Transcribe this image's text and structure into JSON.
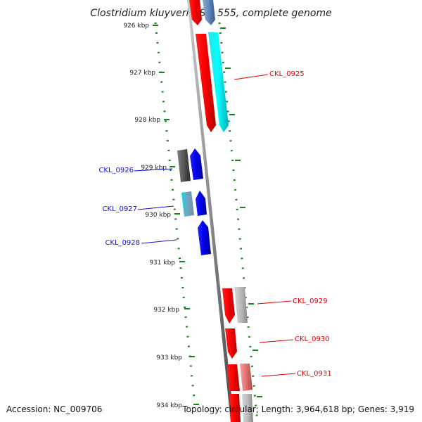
{
  "title": "Clostridium kluyveri DSM 555, complete genome",
  "ruler": [
    "926 kbp",
    "927 kbp",
    "928 kbp",
    "929 kbp",
    "930 kbp",
    "931 kbp",
    "932 kbp",
    "933 kbp",
    "934 kbp"
  ],
  "gene_labels": [
    "CKL_0925",
    "CKL_0926",
    "CKL_0927",
    "CKL_0928",
    "CKL_0929",
    "CKL_0930",
    "CKL_0931"
  ],
  "footer": {
    "accession_label": "Accession:",
    "accession": "NC_009706",
    "topology": "Topology: circular; Length: 3,964,618 bp; Genes: 3,919"
  },
  "colors": {
    "forward_gene": "#e00000",
    "reverse_gene": "#1010d0",
    "ruler": "#118811",
    "backbone": "#888888"
  }
}
